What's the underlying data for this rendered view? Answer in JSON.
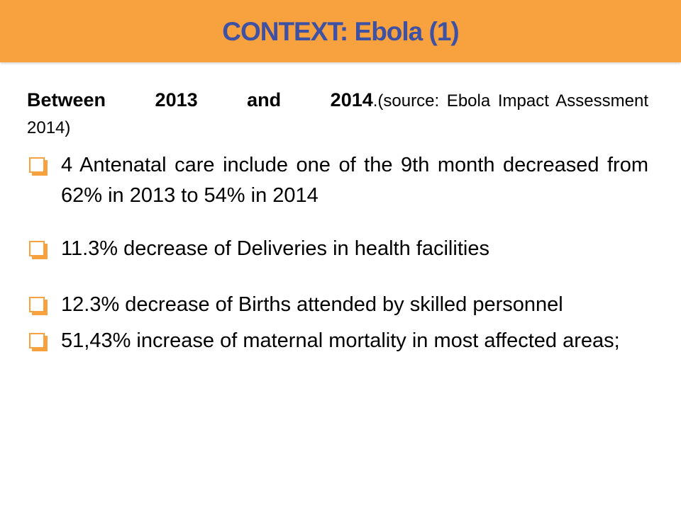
{
  "slide": {
    "title": "CONTEXT: Ebola (1)",
    "colors": {
      "title_bar": "#F7A23E",
      "title_text": "#3F51A3",
      "bullet_box": "#F7A23E",
      "body_text": "#000000"
    },
    "intro": {
      "lead": "Between 2013 and 2014",
      "source": ".(source: Ebola Impact Assessment 2014)"
    },
    "bullets": [
      {
        "icon": "checkbox-bullet-icon",
        "text": "4 Antenatal care include one of the 9th month decreased from 62% in 2013 to 54% in 2014"
      },
      {
        "icon": "checkbox-bullet-icon",
        "text": "11.3% decrease of Deliveries in health facilities"
      },
      {
        "icon": "checkbox-bullet-icon",
        "text": "12.3% decrease of Births attended by skilled personnel"
      },
      {
        "icon": "checkbox-bullet-icon",
        "text": "51,43% increase of maternal mortality in most affected areas;"
      }
    ]
  }
}
